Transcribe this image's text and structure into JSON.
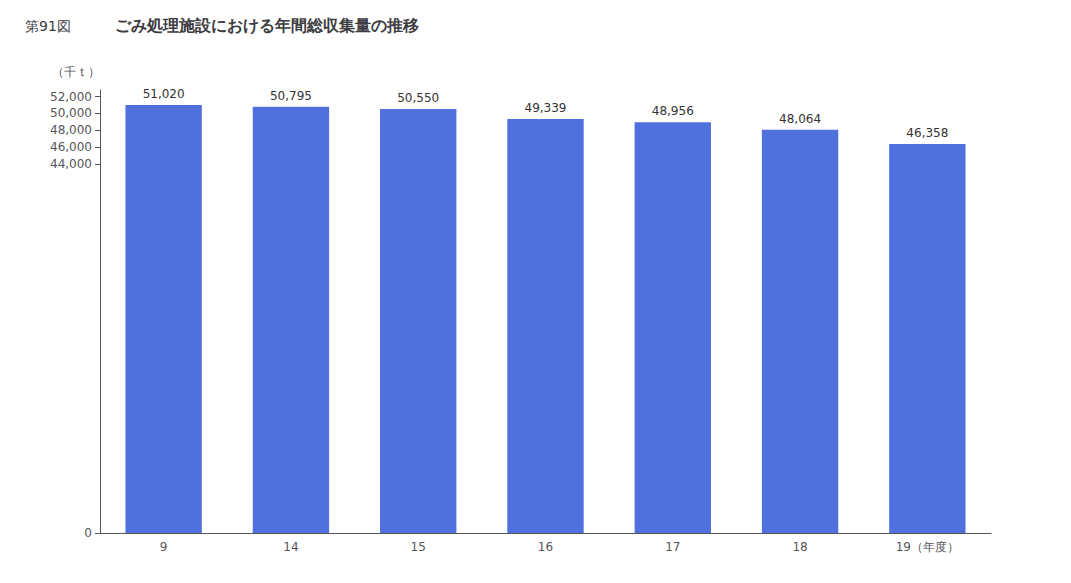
{
  "chart_data": {
    "type": "bar",
    "title": "ごみ処理施設における年間総収集量の推移",
    "subtitle": "第91図",
    "ylabel": "（千ｔ）",
    "categories": [
      "9",
      "14",
      "15",
      "16",
      "17",
      "18",
      "19（年度）"
    ],
    "values": [
      51020,
      50795,
      50550,
      49339,
      48956,
      48064,
      46358
    ],
    "value_labels": [
      "51,020",
      "50,795",
      "50,550",
      "49,339",
      "48,956",
      "48,064",
      "46,358"
    ],
    "ylim": [
      0,
      52800
    ],
    "yticks": [
      0,
      {
        "value": 44000,
        "label": "44,000"
      },
      {
        "value": 46000,
        "label": "46,000"
      },
      {
        "value": 48000,
        "label": "48,000"
      },
      {
        "value": 50000,
        "label": "50,000"
      },
      {
        "value": 52000,
        "label": "52,000"
      }
    ],
    "grid": false,
    "data_labels": true
  }
}
